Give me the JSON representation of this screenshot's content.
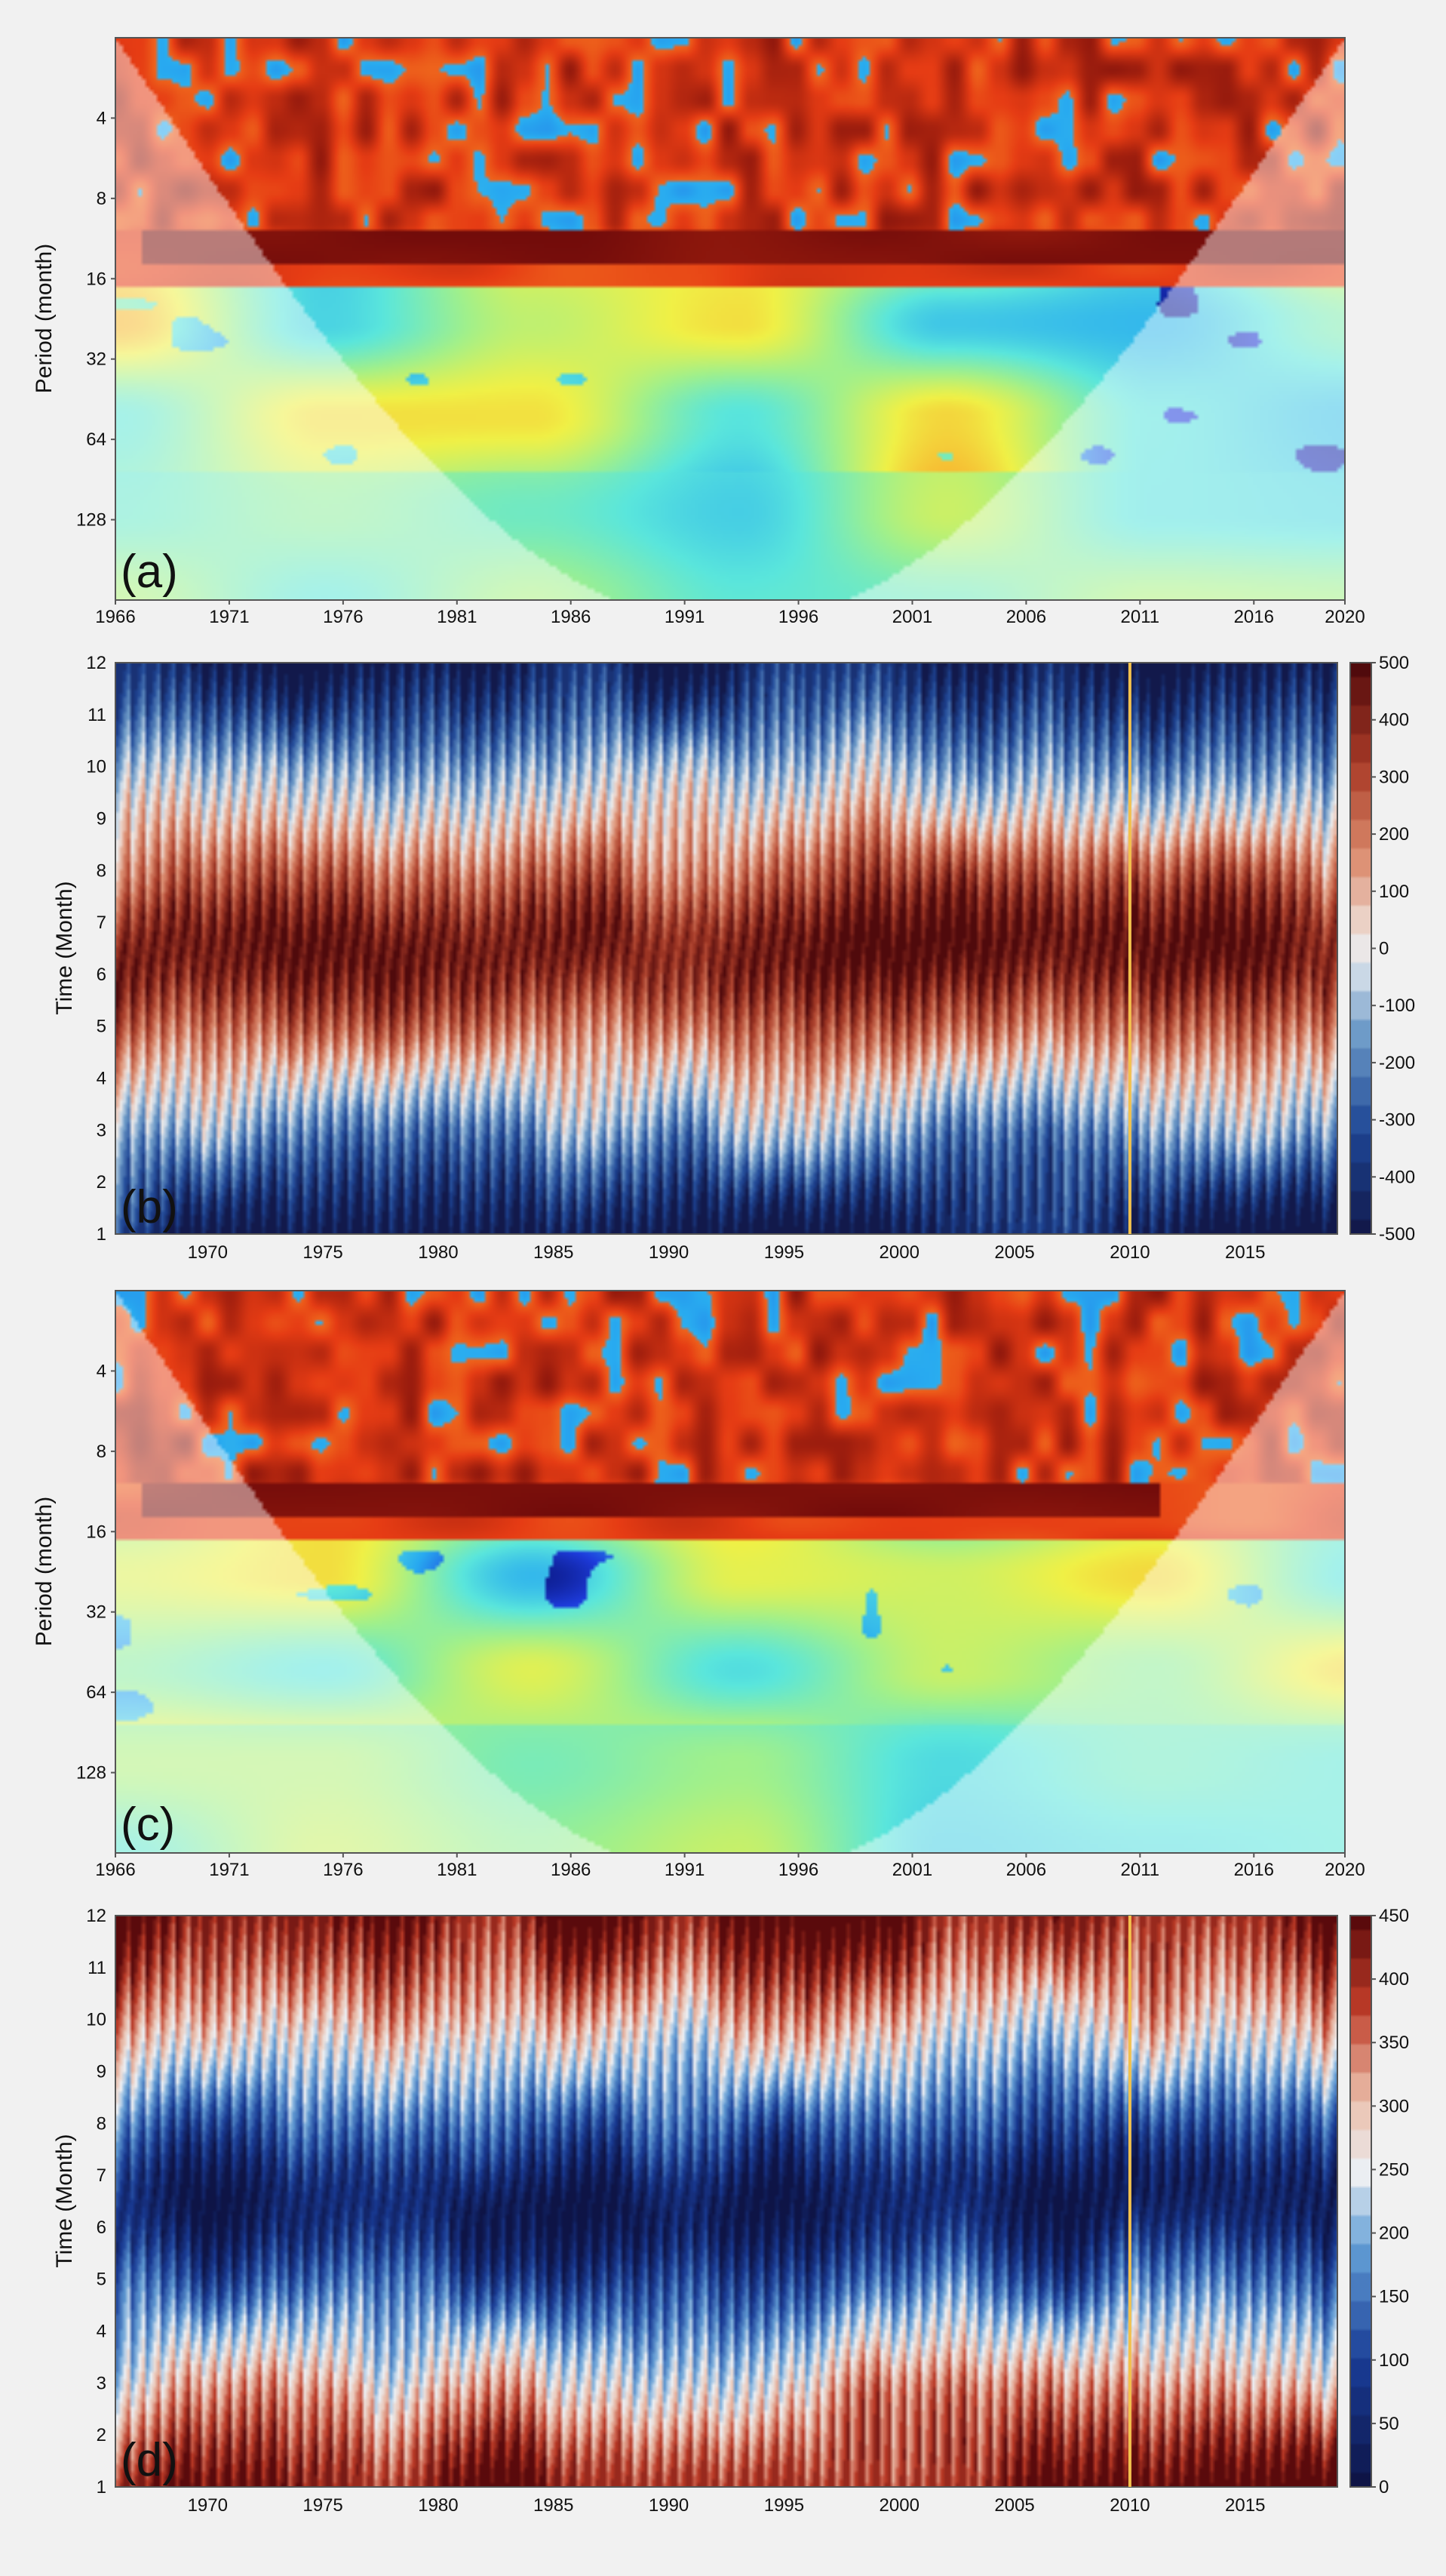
{
  "figure": {
    "panels": [
      {
        "id": "a",
        "label": "(a)",
        "type": "wavelet",
        "ylabel": "Period (month)",
        "yticks": [
          "4",
          "8",
          "16",
          "32",
          "64",
          "128"
        ],
        "xticks": [
          "1966",
          "1971",
          "1976",
          "1981",
          "1986",
          "1991",
          "1996",
          "2001",
          "2006",
          "2011",
          "2016",
          "2020"
        ]
      },
      {
        "id": "b",
        "label": "(b)",
        "type": "contour",
        "ylabel": "Time (Month)",
        "yticks": [
          "1",
          "2",
          "3",
          "4",
          "5",
          "6",
          "7",
          "8",
          "9",
          "10",
          "11",
          "12"
        ],
        "xticks": [
          "1970",
          "1975",
          "1980",
          "1985",
          "1990",
          "1995",
          "2000",
          "2005",
          "2010",
          "2015"
        ],
        "colorbar_ticks": [
          "500",
          "400",
          "300",
          "200",
          "100",
          "0",
          "-100",
          "-200",
          "-300",
          "-400",
          "-500"
        ]
      },
      {
        "id": "c",
        "label": "(c)",
        "type": "wavelet",
        "ylabel": "Period (month)",
        "yticks": [
          "4",
          "8",
          "16",
          "32",
          "64",
          "128"
        ],
        "xticks": [
          "1966",
          "1971",
          "1976",
          "1981",
          "1986",
          "1991",
          "1996",
          "2001",
          "2006",
          "2011",
          "2016",
          "2020"
        ]
      },
      {
        "id": "d",
        "label": "(d)",
        "type": "contour",
        "ylabel": "Time (Month)",
        "yticks": [
          "1",
          "2",
          "3",
          "4",
          "5",
          "6",
          "7",
          "8",
          "9",
          "10",
          "11",
          "12"
        ],
        "xticks": [
          "1970",
          "1975",
          "1980",
          "1985",
          "1990",
          "1995",
          "2000",
          "2005",
          "2010",
          "2015"
        ],
        "colorbar_ticks": [
          "450",
          "400",
          "350",
          "300",
          "250",
          "200",
          "150",
          "100",
          "50",
          "0"
        ]
      }
    ]
  },
  "chart_data": [
    {
      "type": "heatmap",
      "panel": "(a)",
      "x_range": [
        1966,
        2020
      ],
      "y_scale": "log2",
      "y_range": [
        2,
        256
      ],
      "ylabel": "Period (month)",
      "colormap": "jet",
      "dominant_band_period_months": [
        10,
        14
      ],
      "dominant_band_years": [
        1967,
        2019
      ],
      "cone_of_influence": true
    },
    {
      "type": "heatmap",
      "panel": "(b)",
      "x_range": [
        1966,
        2019
      ],
      "y_range": [
        1,
        12
      ],
      "ylabel": "Time (Month)",
      "colormap": "blue-white-red",
      "colorbar_range": [
        -500,
        500
      ],
      "marker_line_x": 2010,
      "marker_line_color": "#f2c14e",
      "low_band_center_month": 6.5,
      "band_drift_months": [
        -0.3,
        0.3
      ]
    },
    {
      "type": "heatmap",
      "panel": "(c)",
      "x_range": [
        1966,
        2020
      ],
      "y_scale": "log2",
      "y_range": [
        2,
        256
      ],
      "ylabel": "Period (month)",
      "colormap": "jet",
      "dominant_band_period_months": [
        9,
        14
      ],
      "dominant_band_years": [
        1967,
        2011
      ],
      "cone_of_influence": true
    },
    {
      "type": "heatmap",
      "panel": "(d)",
      "x_range": [
        1966,
        2019
      ],
      "y_range": [
        1,
        12
      ],
      "ylabel": "Time (Month)",
      "colormap": "navy-white-red",
      "colorbar_range": [
        0,
        450
      ],
      "marker_line_x": 2010,
      "marker_line_color": "#f2c14e",
      "high_band_center_month": 6.5
    }
  ]
}
